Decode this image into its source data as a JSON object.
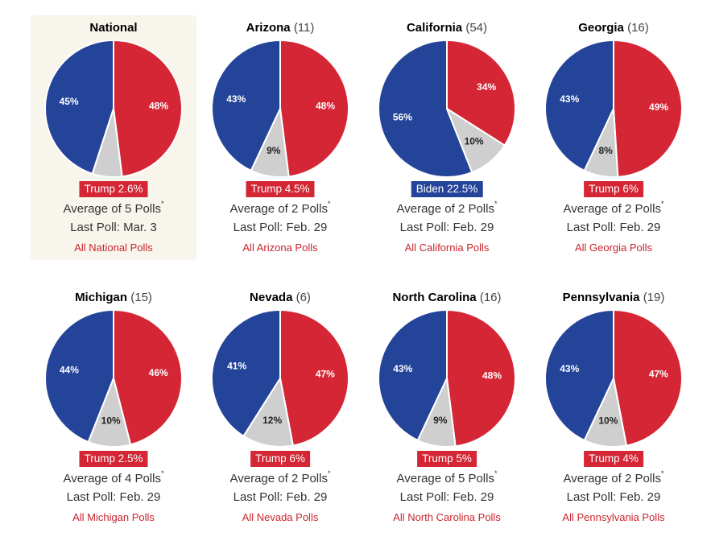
{
  "colors": {
    "dem": "#24449a",
    "rep": "#d42634",
    "other": "#cfcfcf"
  },
  "chart_data": [
    {
      "type": "pie",
      "name": "National",
      "ev": "",
      "slices": [
        {
          "label": "Biden",
          "value": 45
        },
        {
          "label": "Trump",
          "value": 48
        },
        {
          "label": "Other",
          "value": 7
        }
      ],
      "labels": [
        "45%",
        "48%",
        ""
      ],
      "leader": "Trump",
      "leader_text": "Trump 2.6%",
      "avg_text": "Average of 5 Polls",
      "last_poll": "Last Poll: Mar. 3",
      "link": "All National Polls"
    },
    {
      "type": "pie",
      "name": "Arizona",
      "ev": "(11)",
      "slices": [
        {
          "label": "Biden",
          "value": 43
        },
        {
          "label": "Trump",
          "value": 48
        },
        {
          "label": "Other",
          "value": 9
        }
      ],
      "labels": [
        "43%",
        "48%",
        "9%"
      ],
      "leader": "Trump",
      "leader_text": "Trump 4.5%",
      "avg_text": "Average of 2 Polls",
      "last_poll": "Last Poll: Feb. 29",
      "link": "All Arizona Polls"
    },
    {
      "type": "pie",
      "name": "California",
      "ev": "(54)",
      "slices": [
        {
          "label": "Biden",
          "value": 56
        },
        {
          "label": "Trump",
          "value": 34
        },
        {
          "label": "Other",
          "value": 10
        }
      ],
      "labels": [
        "56%",
        "34%",
        "10%"
      ],
      "leader": "Biden",
      "leader_text": "Biden 22.5%",
      "avg_text": "Average of 2 Polls",
      "last_poll": "Last Poll: Feb. 29",
      "link": "All California Polls"
    },
    {
      "type": "pie",
      "name": "Georgia",
      "ev": "(16)",
      "slices": [
        {
          "label": "Biden",
          "value": 43
        },
        {
          "label": "Trump",
          "value": 49
        },
        {
          "label": "Other",
          "value": 8
        }
      ],
      "labels": [
        "43%",
        "49%",
        "8%"
      ],
      "leader": "Trump",
      "leader_text": "Trump 6%",
      "avg_text": "Average of 2 Polls",
      "last_poll": "Last Poll: Feb. 29",
      "link": "All Georgia Polls"
    },
    {
      "type": "pie",
      "name": "Michigan",
      "ev": "(15)",
      "slices": [
        {
          "label": "Biden",
          "value": 44
        },
        {
          "label": "Trump",
          "value": 46
        },
        {
          "label": "Other",
          "value": 10
        }
      ],
      "labels": [
        "44%",
        "46%",
        "10%"
      ],
      "leader": "Trump",
      "leader_text": "Trump 2.5%",
      "avg_text": "Average of 4 Polls",
      "last_poll": "Last Poll: Feb. 29",
      "link": "All Michigan Polls"
    },
    {
      "type": "pie",
      "name": "Nevada",
      "ev": "(6)",
      "slices": [
        {
          "label": "Biden",
          "value": 41
        },
        {
          "label": "Trump",
          "value": 47
        },
        {
          "label": "Other",
          "value": 12
        }
      ],
      "labels": [
        "41%",
        "47%",
        "12%"
      ],
      "leader": "Trump",
      "leader_text": "Trump 6%",
      "avg_text": "Average of 2 Polls",
      "last_poll": "Last Poll: Feb. 29",
      "link": "All Nevada Polls"
    },
    {
      "type": "pie",
      "name": "North Carolina",
      "ev": "(16)",
      "slices": [
        {
          "label": "Biden",
          "value": 43
        },
        {
          "label": "Trump",
          "value": 48
        },
        {
          "label": "Other",
          "value": 9
        }
      ],
      "labels": [
        "43%",
        "48%",
        "9%"
      ],
      "leader": "Trump",
      "leader_text": "Trump 5%",
      "avg_text": "Average of 5 Polls",
      "last_poll": "Last Poll: Feb. 29",
      "link": "All North Carolina Polls"
    },
    {
      "type": "pie",
      "name": "Pennsylvania",
      "ev": "(19)",
      "slices": [
        {
          "label": "Biden",
          "value": 43
        },
        {
          "label": "Trump",
          "value": 47
        },
        {
          "label": "Other",
          "value": 10
        }
      ],
      "labels": [
        "43%",
        "47%",
        "10%"
      ],
      "leader": "Trump",
      "leader_text": "Trump 4%",
      "avg_text": "Average of 2 Polls",
      "last_poll": "Last Poll: Feb. 29",
      "link": "All Pennsylvania Polls"
    }
  ],
  "footnote_marker": "*"
}
